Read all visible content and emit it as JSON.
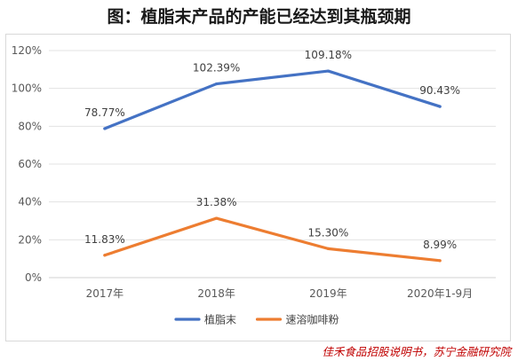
{
  "title": "图：植脂末产品的产能已经达到其瓶颈期",
  "source": "佳禾食品招股说明书，苏宁金融研究院",
  "chart_data": {
    "type": "line",
    "title": "",
    "xlabel": "",
    "ylabel": "",
    "categories": [
      "2017年",
      "2018年",
      "2019年",
      "2020年1-9月"
    ],
    "ylim": [
      0,
      120
    ],
    "yticks": [
      0,
      20,
      40,
      60,
      80,
      100,
      120
    ],
    "ytick_labels": [
      "0%",
      "20%",
      "40%",
      "60%",
      "80%",
      "100%",
      "120%"
    ],
    "grid": true,
    "legend_position": "bottom",
    "series": [
      {
        "name": "植脂末",
        "color": "#4472c4",
        "values": [
          78.77,
          102.39,
          109.18,
          90.43
        ],
        "labels": [
          "78.77%",
          "102.39%",
          "109.18%",
          "90.43%"
        ]
      },
      {
        "name": "速溶咖啡粉",
        "color": "#ed7d31",
        "values": [
          11.83,
          31.38,
          15.3,
          8.99
        ],
        "labels": [
          "11.83%",
          "31.38%",
          "15.30%",
          "8.99%"
        ]
      }
    ]
  }
}
